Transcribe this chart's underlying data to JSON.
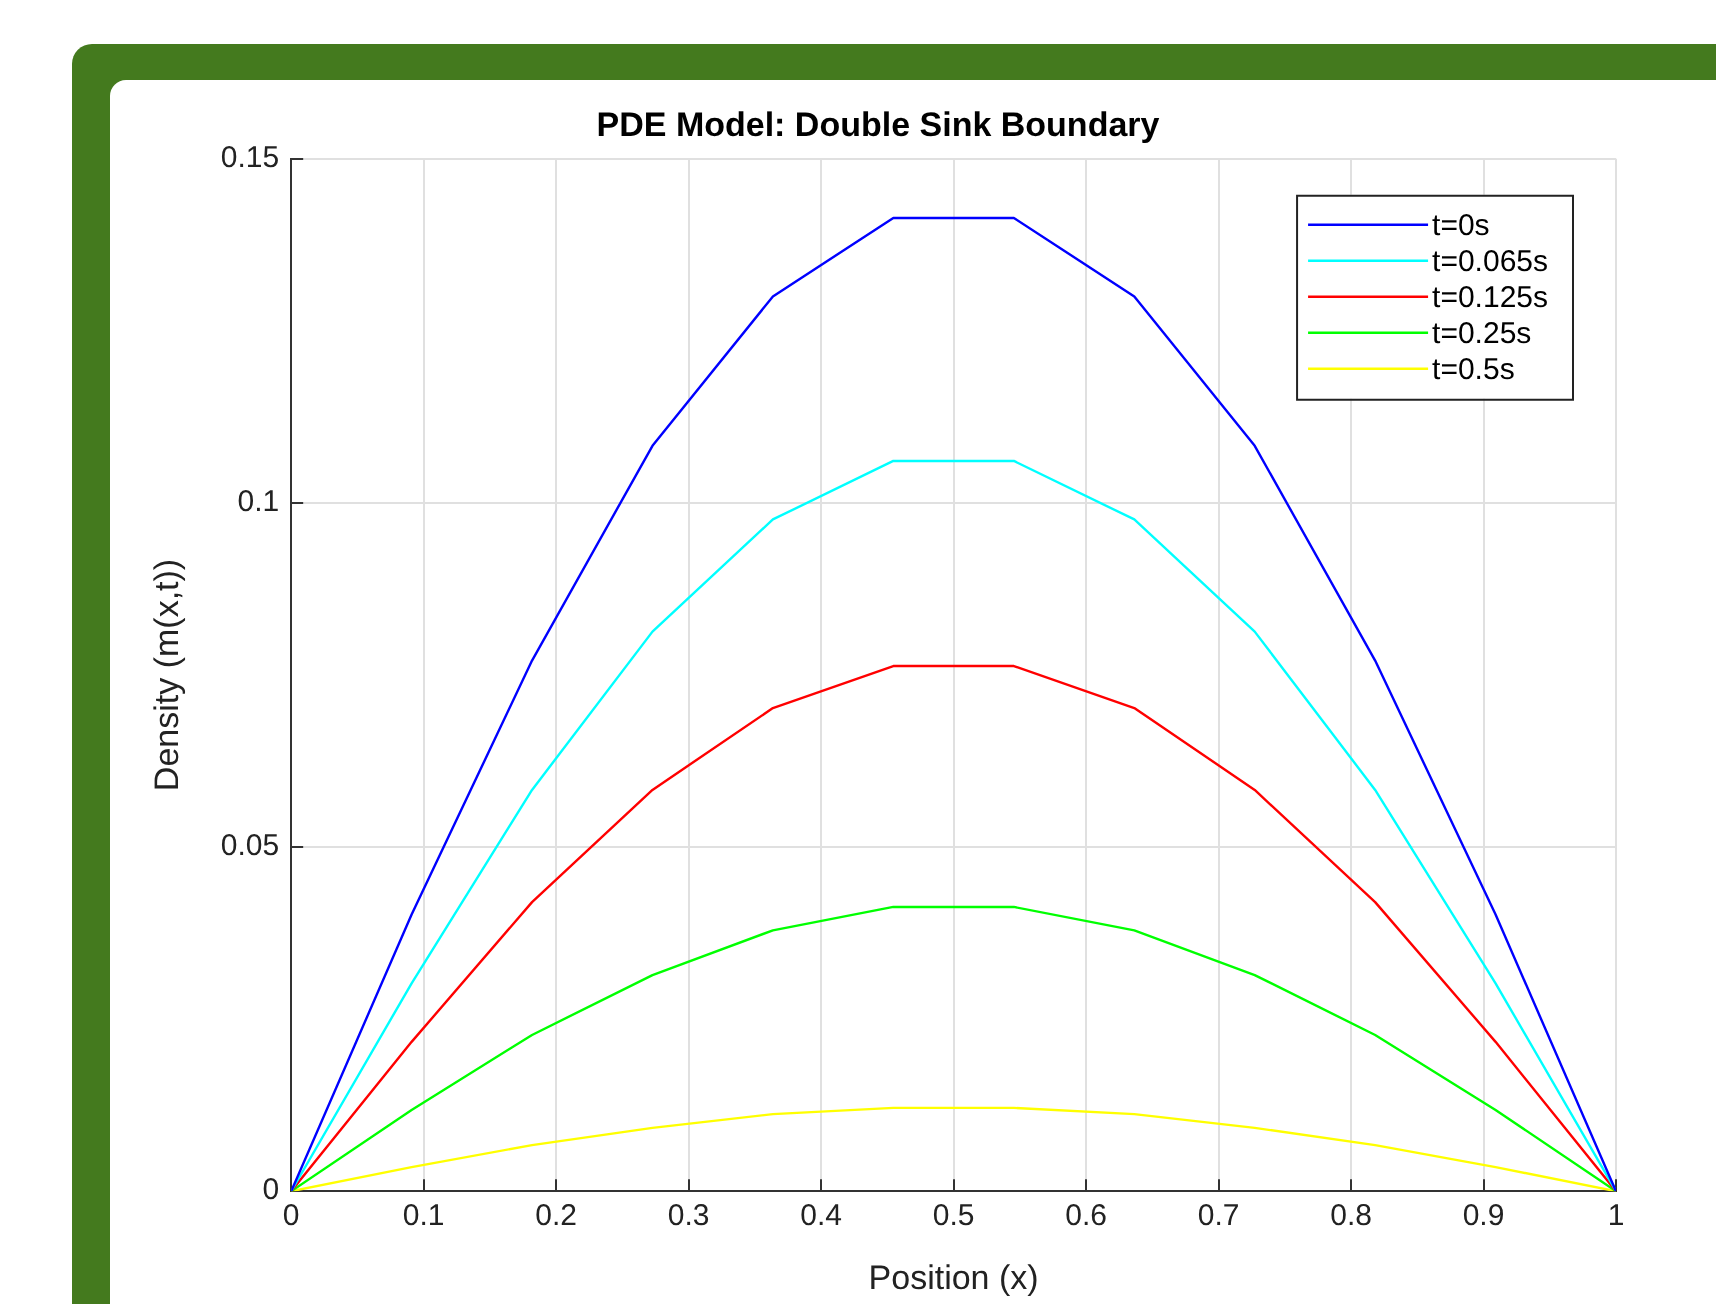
{
  "chart_data": {
    "type": "line",
    "title": "PDE Model: Double Sink Boundary",
    "xlabel": "Position (x)",
    "ylabel": "Density (m(x,t))",
    "x": [
      0,
      0.0909,
      0.1818,
      0.2727,
      0.3636,
      0.4545,
      0.5455,
      0.6364,
      0.7273,
      0.8182,
      0.9091,
      1
    ],
    "series": [
      {
        "name": "t=0s",
        "color": "#0000ff",
        "values": [
          0,
          0.0402,
          0.0771,
          0.1083,
          0.13,
          0.1414,
          0.1414,
          0.13,
          0.1083,
          0.0771,
          0.0402,
          0
        ]
      },
      {
        "name": "t=0.065s",
        "color": "#00ffff",
        "values": [
          0,
          0.0302,
          0.0583,
          0.0813,
          0.0976,
          0.1061,
          0.1061,
          0.0976,
          0.0813,
          0.0583,
          0.0302,
          0
        ]
      },
      {
        "name": "t=0.125s",
        "color": "#ff0000",
        "values": [
          0,
          0.0217,
          0.042,
          0.0583,
          0.0702,
          0.0763,
          0.0763,
          0.0702,
          0.0583,
          0.042,
          0.0217,
          0
        ]
      },
      {
        "name": "t=0.25s",
        "color": "#00ff00",
        "values": [
          0,
          0.0118,
          0.0227,
          0.0314,
          0.0379,
          0.0413,
          0.0413,
          0.0379,
          0.0314,
          0.0227,
          0.0118,
          0
        ]
      },
      {
        "name": "t=0.5s",
        "color": "#ffff00",
        "values": [
          0,
          0.0035,
          0.0067,
          0.0092,
          0.0112,
          0.0121,
          0.0121,
          0.0112,
          0.0092,
          0.0067,
          0.0035,
          0
        ]
      }
    ],
    "xlim": [
      0,
      1
    ],
    "xticks": [
      0,
      0.1,
      0.2,
      0.3,
      0.4,
      0.5,
      0.6,
      0.7,
      0.8,
      0.9,
      1
    ],
    "ylim": [
      0,
      0.15
    ],
    "yticks": [
      0,
      0.05,
      0.1,
      0.15
    ],
    "grid": true,
    "legend": "top right",
    "marker": "none",
    "line_style": "solid"
  }
}
